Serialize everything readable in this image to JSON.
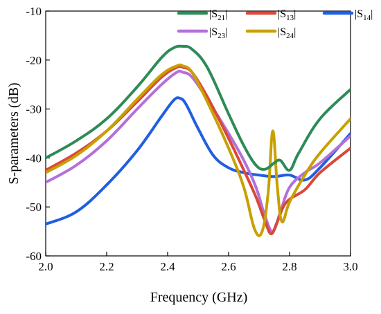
{
  "chart_data": {
    "type": "line",
    "title": "",
    "xlabel": "Frequency (GHz)",
    "ylabel": "S-parameters (dB)",
    "xlim": [
      2.0,
      3.0
    ],
    "ylim": [
      -60,
      -10
    ],
    "x_ticks": [
      2.0,
      2.2,
      2.4,
      2.6,
      2.8,
      3.0
    ],
    "x_tick_labels": [
      "2.0",
      "2.2",
      "2.4",
      "2.6",
      "2.8",
      "3.0"
    ],
    "y_ticks": [
      -10,
      -20,
      -30,
      -40,
      -50,
      -60
    ],
    "y_tick_labels": [
      "-10",
      "-20",
      "-30",
      "-40",
      "-50",
      "-60"
    ],
    "grid": false,
    "legend_position": "top-right",
    "series": [
      {
        "name": "|S21|",
        "base": "S",
        "sub": "21",
        "color": "#2e8b57",
        "x": [
          2.0,
          2.1,
          2.2,
          2.3,
          2.38,
          2.42,
          2.45,
          2.48,
          2.53,
          2.6,
          2.65,
          2.69,
          2.72,
          2.75,
          2.77,
          2.8,
          2.83,
          2.9,
          3.0
        ],
        "y": [
          -40,
          -36.5,
          -32,
          -25.5,
          -19.5,
          -17.5,
          -17.2,
          -17.8,
          -21.5,
          -31,
          -37.5,
          -41.5,
          -42.3,
          -41,
          -40.5,
          -42.5,
          -39,
          -32,
          -26
        ]
      },
      {
        "name": "|S13|",
        "base": "S",
        "sub": "13",
        "color": "#d9483b",
        "x": [
          2.0,
          2.1,
          2.2,
          2.3,
          2.38,
          2.43,
          2.45,
          2.48,
          2.53,
          2.6,
          2.65,
          2.69,
          2.72,
          2.74,
          2.76,
          2.79,
          2.85,
          2.9,
          3.0
        ],
        "y": [
          -42.5,
          -39,
          -34.5,
          -28.5,
          -23.5,
          -21.5,
          -21.5,
          -22.5,
          -27.5,
          -36,
          -42.5,
          -48,
          -53,
          -55.5,
          -53,
          -49,
          -46.5,
          -43,
          -38
        ]
      },
      {
        "name": "|S14|",
        "base": "S",
        "sub": "14",
        "color": "#1f5fe0",
        "x": [
          2.0,
          2.1,
          2.2,
          2.3,
          2.38,
          2.42,
          2.44,
          2.46,
          2.5,
          2.55,
          2.6,
          2.65,
          2.7,
          2.75,
          2.8,
          2.85,
          2.9,
          3.0
        ],
        "y": [
          -53.5,
          -51,
          -45.5,
          -38.5,
          -31.5,
          -28.2,
          -27.8,
          -29,
          -34,
          -39.5,
          -42,
          -43,
          -43.5,
          -43.8,
          -43.5,
          -44.5,
          -42,
          -35
        ]
      },
      {
        "name": "|S23|",
        "base": "S",
        "sub": "23",
        "color": "#b370d9",
        "x": [
          2.0,
          2.1,
          2.2,
          2.3,
          2.38,
          2.43,
          2.45,
          2.48,
          2.53,
          2.6,
          2.65,
          2.69,
          2.72,
          2.745,
          2.77,
          2.8,
          2.85,
          2.9,
          3.0
        ],
        "y": [
          -45,
          -41.5,
          -36.5,
          -30,
          -25,
          -22.5,
          -22.5,
          -23.5,
          -28,
          -35,
          -40.5,
          -46,
          -52,
          -55,
          -51,
          -46,
          -43,
          -41,
          -35.5
        ]
      },
      {
        "name": "|S24|",
        "base": "S",
        "sub": "24",
        "color": "#c8a000",
        "x": [
          2.0,
          2.1,
          2.2,
          2.3,
          2.38,
          2.43,
          2.45,
          2.48,
          2.53,
          2.6,
          2.65,
          2.685,
          2.71,
          2.73,
          2.745,
          2.76,
          2.775,
          2.8,
          2.85,
          2.9,
          3.0
        ],
        "y": [
          -43,
          -39.5,
          -34.5,
          -28,
          -23,
          -21.2,
          -21.2,
          -22.5,
          -28.5,
          -38,
          -46,
          -54.5,
          -55,
          -47,
          -34.5,
          -46,
          -53,
          -49,
          -43.5,
          -39,
          -32
        ]
      }
    ]
  }
}
